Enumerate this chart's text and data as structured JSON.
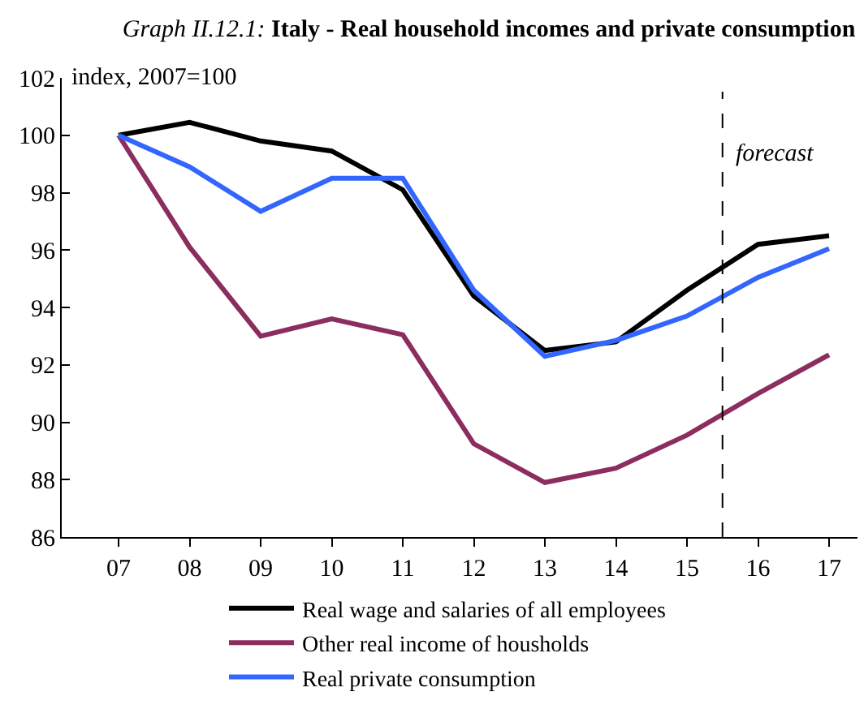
{
  "chart_data": {
    "type": "line",
    "title": "Graph II.12.1: Italy - Real household incomes and private consumption",
    "annotations": [
      "index, 2007=100"
    ],
    "x": [
      2007,
      2008,
      2009,
      2010,
      2011,
      2012,
      2013,
      2014,
      2015,
      2016,
      2017
    ],
    "xlim": [
      2006.2,
      2017.4
    ],
    "xticks": [
      {
        "value": 2007,
        "label": "07"
      },
      {
        "value": 2008,
        "label": "08"
      },
      {
        "value": 2009,
        "label": "09"
      },
      {
        "value": 2010,
        "label": "10"
      },
      {
        "value": 2011,
        "label": "11"
      },
      {
        "value": 2012,
        "label": "12"
      },
      {
        "value": 2013,
        "label": "13"
      },
      {
        "value": 2014,
        "label": "14"
      },
      {
        "value": 2015,
        "label": "15"
      },
      {
        "value": 2016,
        "label": "16"
      },
      {
        "value": 2017,
        "label": "17"
      }
    ],
    "ylim": [
      86,
      102
    ],
    "yticks": [
      86,
      88,
      90,
      92,
      94,
      96,
      98,
      100,
      102
    ],
    "series": [
      {
        "name": "Real wage and salaries of all employees",
        "color": "#000000",
        "values": [
          100,
          100.45,
          99.8,
          99.45,
          98.1,
          94.4,
          92.5,
          92.8,
          94.6,
          96.2,
          96.5
        ]
      },
      {
        "name": "Other real income of housholds",
        "color": "#8b2d5e",
        "values": [
          100,
          96.1,
          93.0,
          93.6,
          93.05,
          89.25,
          87.9,
          88.4,
          89.55,
          91.0,
          92.35
        ]
      },
      {
        "name": "Real private consumption",
        "color": "#3366ff",
        "values": [
          100,
          98.9,
          97.35,
          98.5,
          98.5,
          94.6,
          92.3,
          92.85,
          93.7,
          95.05,
          96.05
        ]
      }
    ],
    "ref_lines": [
      {
        "axis": "x",
        "value": 2015.5,
        "label": "forecast",
        "color": "#000000",
        "line_style": "dashed"
      }
    ],
    "grid": false,
    "legend": "bottom",
    "marker": "none",
    "line_style": "solid"
  }
}
